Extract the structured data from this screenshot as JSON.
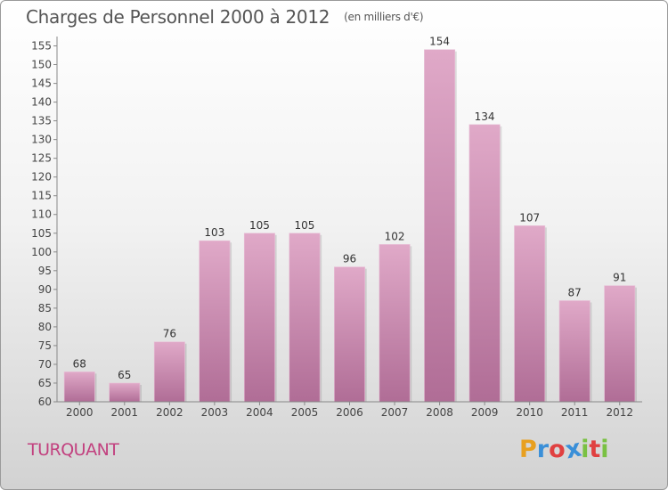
{
  "header": {
    "title": "Charges de Personnel 2000 à 2012",
    "unit": "(en milliers d'€)"
  },
  "footer": {
    "commune": "TURQUANT",
    "brand": {
      "letters": [
        "P",
        "r",
        "o",
        "x",
        "i",
        "t",
        "i"
      ],
      "colors": [
        "#e8a020",
        "#3a8fd8",
        "#e04040",
        "#3a8fd8",
        "#7ac143",
        "#e04040",
        "#7ac143"
      ]
    }
  },
  "chart_data": {
    "type": "bar",
    "categories": [
      "2000",
      "2001",
      "2002",
      "2003",
      "2004",
      "2005",
      "2006",
      "2007",
      "2008",
      "2009",
      "2010",
      "2011",
      "2012"
    ],
    "values": [
      68,
      65,
      76,
      103,
      105,
      105,
      96,
      102,
      154,
      134,
      107,
      87,
      91
    ],
    "data_labels": [
      "68",
      "65",
      "76",
      "103",
      "105",
      "105",
      "96",
      "102",
      "154",
      "134",
      "107",
      "87",
      "91"
    ],
    "yticks": [
      "60",
      "65",
      "70",
      "75",
      "80",
      "85",
      "90",
      "95",
      "100",
      "105",
      "110",
      "115",
      "120",
      "125",
      "130",
      "135",
      "140",
      "145",
      "150",
      "155"
    ],
    "ylim": [
      60,
      157.5
    ],
    "grid": false,
    "legend": "none",
    "bar_color": "#c87aa6"
  }
}
